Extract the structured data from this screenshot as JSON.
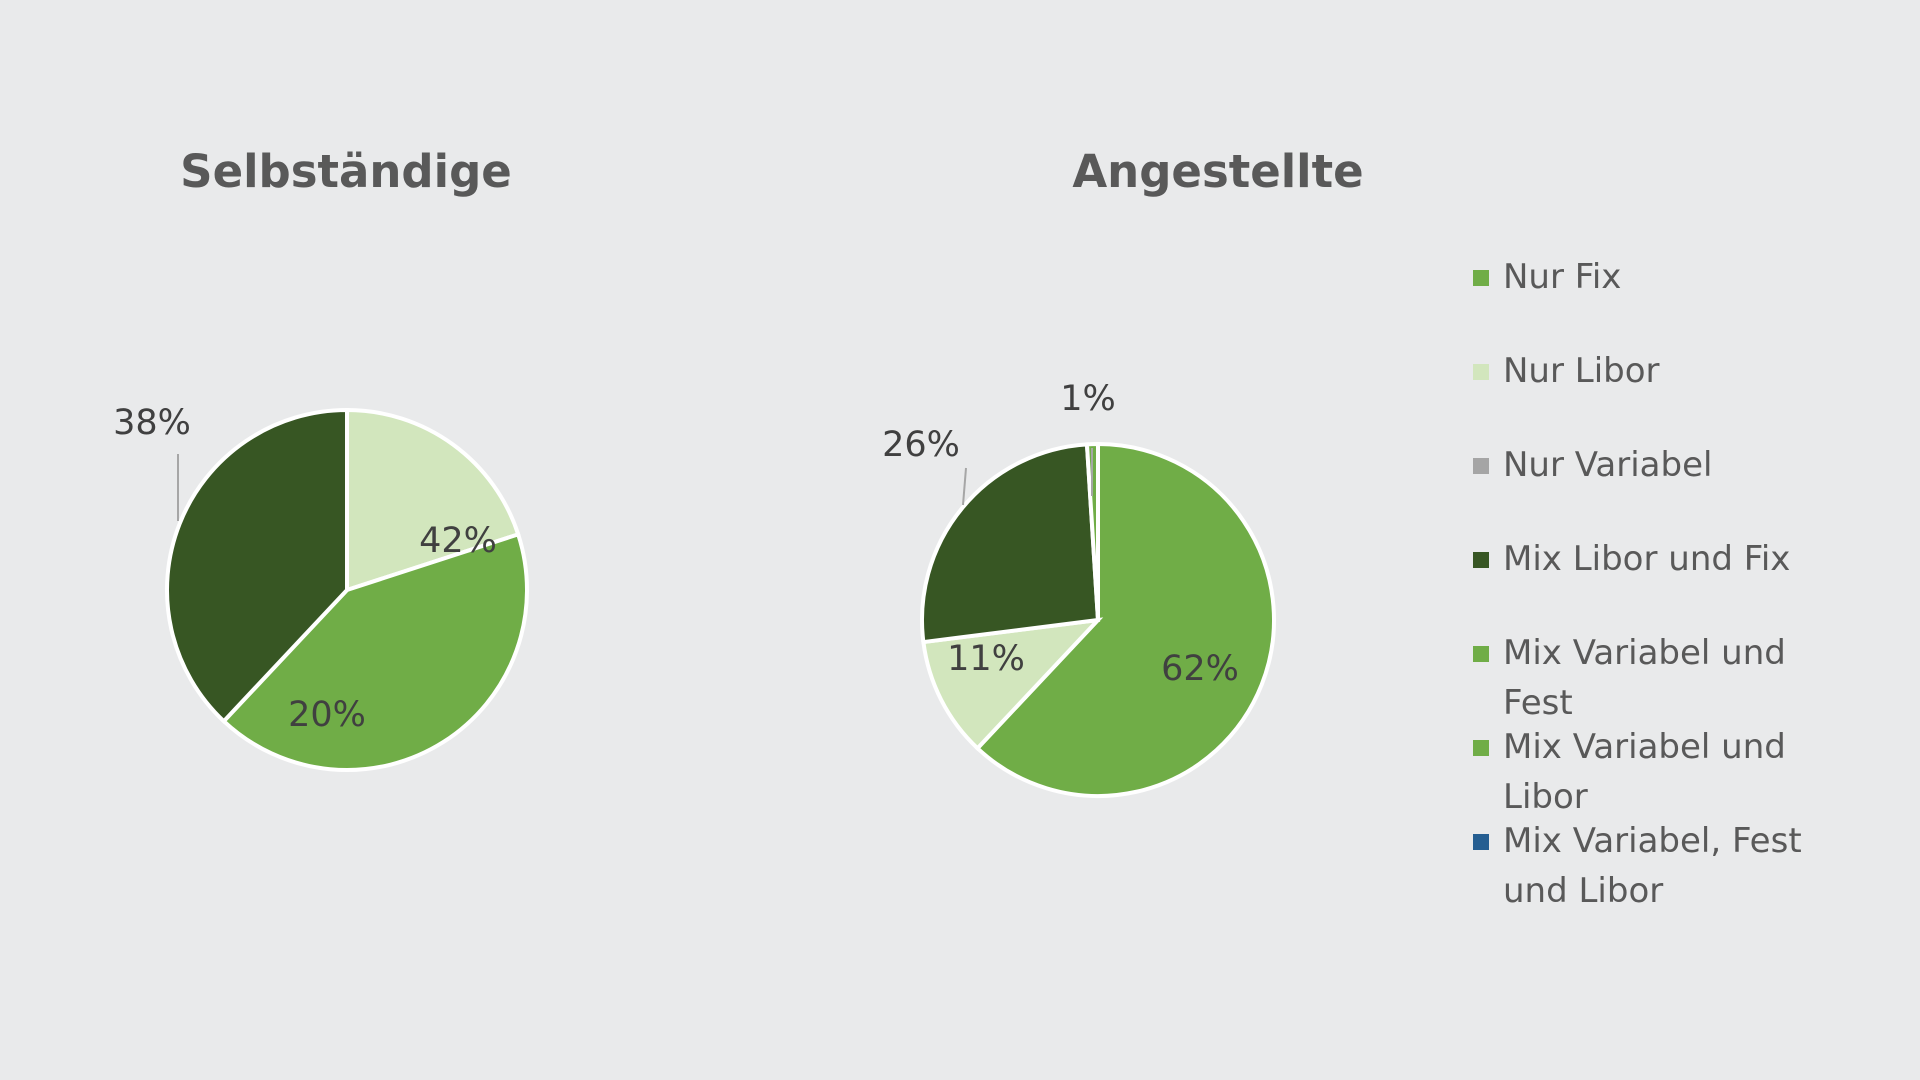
{
  "colors": {
    "nur_fix": "#70ad47",
    "nur_libor": "#d2e6bd",
    "nur_variabel": "#a5a5a5",
    "mix_libor_fix": "#375623",
    "mix_variabel_fest": "#70ad47",
    "mix_variabel_libor": "#70ad47",
    "mix_variabel_fest_libor": "#255e91"
  },
  "legend": {
    "items": [
      {
        "label": "Nur Fix",
        "color": "#70ad47"
      },
      {
        "label": "Nur Libor",
        "color": "#d2e6bd"
      },
      {
        "label": "Nur Variabel",
        "color": "#a5a5a5"
      },
      {
        "label": "Mix Libor und Fix",
        "color": "#375623"
      },
      {
        "label": "Mix Variabel und Fest",
        "color": "#70ad47"
      },
      {
        "label": "Mix Variabel und Libor",
        "color": "#70ad47"
      },
      {
        "label": "Mix Variabel, Fest und Libor",
        "color": "#255e91"
      }
    ]
  },
  "chart_data": [
    {
      "type": "pie",
      "title": "Selbständige",
      "categories": [
        "Nur Fix",
        "Nur Libor",
        "Mix Libor und Fix"
      ],
      "values": [
        42,
        20,
        38
      ],
      "labels": [
        "42%",
        "20%",
        "38%"
      ],
      "colors": [
        "#70ad47",
        "#d2e6bd",
        "#375623"
      ],
      "legend": "right"
    },
    {
      "type": "pie",
      "title": "Angestellte",
      "categories": [
        "Nur Fix",
        "Nur Libor",
        "Mix Libor und Fix",
        "Mix Variabel und Libor"
      ],
      "values": [
        62,
        11,
        26,
        1
      ],
      "labels": [
        "62%",
        "11%",
        "26%",
        "1%"
      ],
      "colors": [
        "#70ad47",
        "#d2e6bd",
        "#375623",
        "#70ad47"
      ],
      "legend": "right"
    }
  ]
}
